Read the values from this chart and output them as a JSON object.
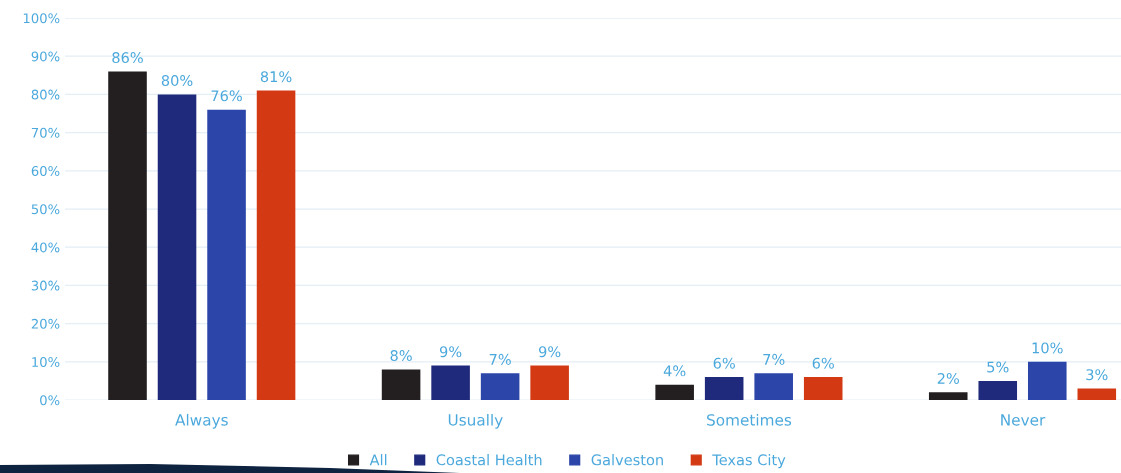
{
  "chart_data": {
    "type": "bar",
    "categories": [
      "Always",
      "Usually",
      "Sometimes",
      "Never"
    ],
    "series": [
      {
        "name": "All",
        "color": "#231f20",
        "values": [
          86,
          8,
          4,
          2
        ],
        "value_labels": [
          "86%",
          "8%",
          "4%",
          "2%"
        ]
      },
      {
        "name": "Coastal Health",
        "color": "#1f2a7c",
        "values": [
          80,
          9,
          6,
          5
        ],
        "value_labels": [
          "80%",
          "9%",
          "6%",
          "5%"
        ]
      },
      {
        "name": "Galveston",
        "color": "#2b45a8",
        "values": [
          76,
          7,
          7,
          10
        ],
        "value_labels": [
          "76%",
          "7%",
          "7%",
          "10%"
        ]
      },
      {
        "name": "Texas City",
        "color": "#d33a14",
        "values": [
          81,
          9,
          6,
          3
        ],
        "value_labels": [
          "81%",
          "9%",
          "6%",
          "3%"
        ]
      }
    ],
    "ylim": [
      0,
      100
    ],
    "yticks": [
      {
        "value": 0,
        "label": "0%"
      },
      {
        "value": 10,
        "label": "10%"
      },
      {
        "value": 20,
        "label": "20%"
      },
      {
        "value": 30,
        "label": "30%"
      },
      {
        "value": 40,
        "label": "40%"
      },
      {
        "value": 50,
        "label": "50%"
      },
      {
        "value": 60,
        "label": "60%"
      },
      {
        "value": 70,
        "label": "70%"
      },
      {
        "value": 80,
        "label": "80%"
      },
      {
        "value": 90,
        "label": "90%"
      },
      {
        "value": 100,
        "label": "100%"
      }
    ],
    "grid": "y",
    "legend": "bottom"
  }
}
